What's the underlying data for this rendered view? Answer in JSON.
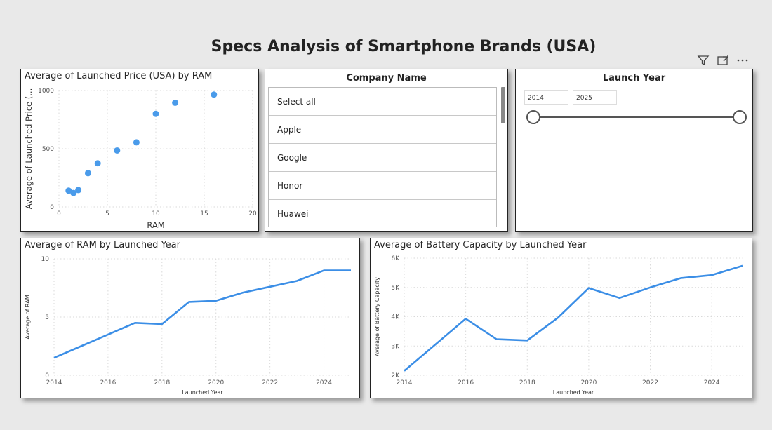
{
  "page_title": "Specs Analysis of Smartphone Brands (USA)",
  "toolbar": {
    "filter_icon": "filter-icon",
    "focus_icon": "focus-mode-icon",
    "more_icon": "more-options-icon"
  },
  "scatter": {
    "title": "Average of Launched Price (USA) by RAM",
    "xlabel": "RAM",
    "ylabel": "Average of Launched Price (...",
    "x_ticks": [
      "0",
      "5",
      "10",
      "15",
      "20"
    ],
    "y_ticks": [
      "0",
      "500",
      "1000"
    ]
  },
  "company_slicer": {
    "title": "Company Name",
    "items": [
      "Select all",
      "Apple",
      "Google",
      "Honor",
      "Huawei"
    ]
  },
  "year_slicer": {
    "title": "Launch Year",
    "start": "2014",
    "end": "2025"
  },
  "ram_line": {
    "title": "Average of RAM by Launched Year",
    "xlabel": "Launched Year",
    "ylabel": "Average of RAM",
    "x_ticks": [
      "2014",
      "2016",
      "2018",
      "2020",
      "2022",
      "2024"
    ],
    "y_ticks": [
      "0",
      "5",
      "10"
    ]
  },
  "battery_line": {
    "title": "Average of Battery Capacity by Launched Year",
    "xlabel": "Launched Year",
    "ylabel": "Average of Battery Capacity",
    "x_ticks": [
      "2014",
      "2016",
      "2018",
      "2020",
      "2022",
      "2024"
    ],
    "y_ticks": [
      "2K",
      "3K",
      "4K",
      "5K",
      "6K"
    ]
  },
  "colors": {
    "series": "#3b8ee6",
    "point": "#4a9bea",
    "grid": "#d9d9d9"
  },
  "chart_data": [
    {
      "type": "scatter",
      "title": "Average of Launched Price (USA) by RAM",
      "xlabel": "RAM",
      "ylabel": "Average of Launched Price (...",
      "xlim": [
        0,
        20
      ],
      "ylim": [
        0,
        1000
      ],
      "points": [
        {
          "x": 1,
          "y": 140
        },
        {
          "x": 1.5,
          "y": 120
        },
        {
          "x": 2,
          "y": 145
        },
        {
          "x": 3,
          "y": 290
        },
        {
          "x": 4,
          "y": 375
        },
        {
          "x": 6,
          "y": 485
        },
        {
          "x": 8,
          "y": 555
        },
        {
          "x": 10,
          "y": 800
        },
        {
          "x": 12,
          "y": 895
        },
        {
          "x": 16,
          "y": 965
        }
      ]
    },
    {
      "type": "line",
      "title": "Average of RAM by Launched Year",
      "xlabel": "Launched Year",
      "ylabel": "Average of RAM",
      "xlim": [
        2014,
        2025
      ],
      "ylim": [
        0,
        10
      ],
      "x": [
        2014,
        2015,
        2016,
        2017,
        2018,
        2019,
        2020,
        2021,
        2022,
        2023,
        2024,
        2025
      ],
      "y": [
        1.5,
        2.5,
        3.5,
        4.5,
        4.4,
        6.3,
        6.4,
        7.1,
        7.6,
        8.1,
        9.0,
        9.0
      ]
    },
    {
      "type": "line",
      "title": "Average of Battery Capacity by Launched Year",
      "xlabel": "Launched Year",
      "ylabel": "Average of Battery Capacity",
      "xlim": [
        2014,
        2025
      ],
      "ylim": [
        2000,
        6000
      ],
      "x": [
        2014,
        2016,
        2017,
        2018,
        2019,
        2020,
        2021,
        2022,
        2023,
        2024,
        2025
      ],
      "y": [
        2150,
        3930,
        3230,
        3190,
        3970,
        4980,
        4640,
        5000,
        5320,
        5420,
        5740
      ]
    }
  ]
}
